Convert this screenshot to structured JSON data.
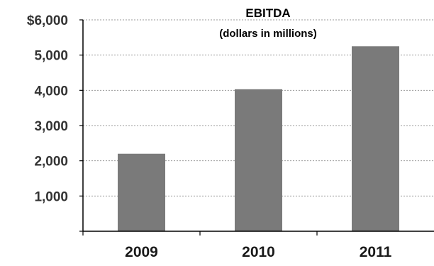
{
  "chart_data": {
    "type": "bar",
    "title": "EBITDA",
    "subtitle": "(dollars in millions)",
    "categories": [
      "2009",
      "2010",
      "2011"
    ],
    "values": [
      2200,
      4030,
      5250
    ],
    "ylim": [
      0,
      6000
    ],
    "yticks": [
      1000,
      2000,
      3000,
      4000,
      5000,
      6000
    ],
    "ytick_labels": [
      "1,000",
      "2,000",
      "3,000",
      "4,000",
      "5,000",
      "$6,000"
    ],
    "xlabel": "",
    "ylabel": "",
    "grid": true,
    "legend": "none",
    "bar_color": "#7a7a7a"
  }
}
